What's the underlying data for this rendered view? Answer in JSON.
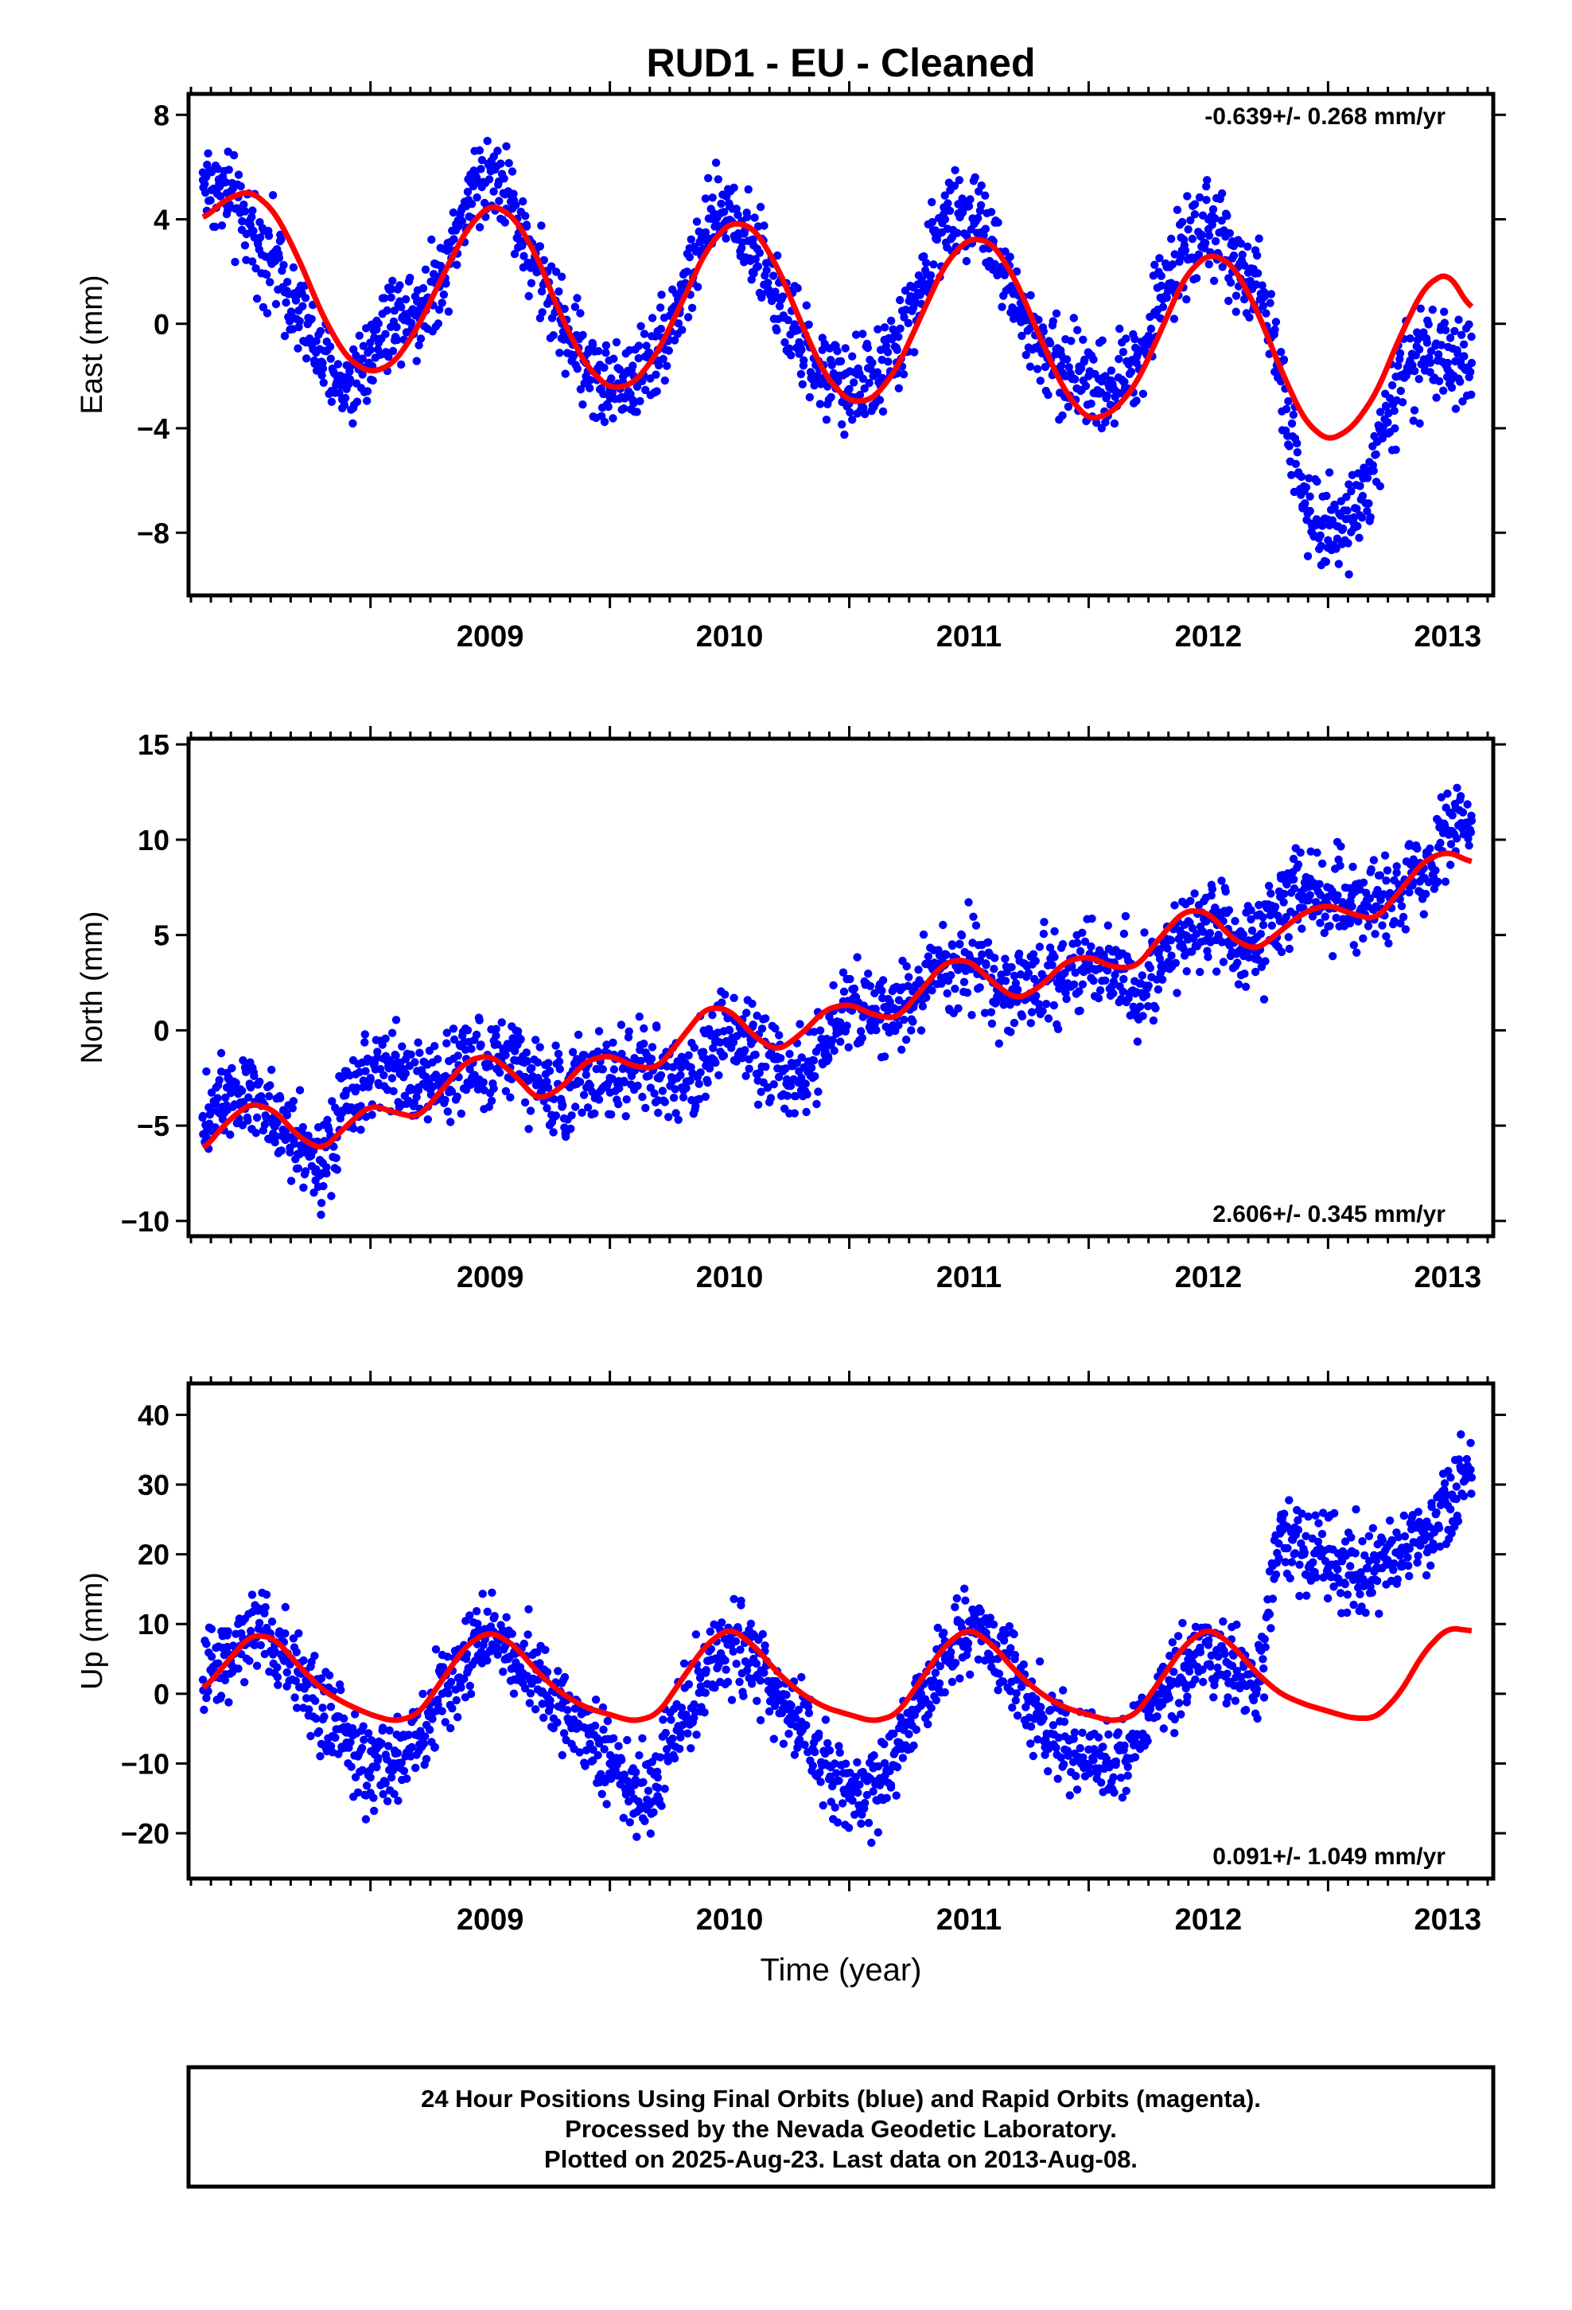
{
  "title": "RUD1  - EU - Cleaned",
  "xlabel": "Time (year)",
  "footer": [
    "24 Hour Positions Using Final Orbits (blue) and Rapid Orbits (magenta).",
    "Processed by the Nevada Geodetic Laboratory.",
    "Plotted on 2025-Aug-23. Last data on 2013-Aug-08."
  ],
  "colors": {
    "data": "#0000ff",
    "model": "#ff0000",
    "frame": "#000000"
  },
  "chart_data": [
    {
      "type": "scatter",
      "ylabel": "East (mm)",
      "rate": "-0.639+/- 0.268 mm/yr",
      "rate_position": "top-right",
      "xlim": [
        2008.24,
        2013.69
      ],
      "ylim": [
        -10.4,
        8.8
      ],
      "x_ticks": [
        2009,
        2010,
        2011,
        2012,
        2013
      ],
      "x_tick_labels": [
        "2009",
        "2010",
        "2011",
        "2012",
        "2013"
      ],
      "y_ticks": [
        -8,
        -4,
        0,
        4,
        8
      ],
      "y_tick_labels": [
        "−8",
        "−4",
        "0",
        "4",
        "8"
      ],
      "grid": false,
      "series": [
        {
          "kind": "points",
          "x": [
            2008.3,
            2008.4,
            2008.5,
            2008.6,
            2008.7,
            2008.8,
            2008.9,
            2009.0,
            2009.1,
            2009.2,
            2009.3,
            2009.4,
            2009.5,
            2009.6,
            2009.7,
            2009.8,
            2009.9,
            2010.0,
            2010.1,
            2010.2,
            2010.3,
            2010.4,
            2010.5,
            2010.6,
            2010.7,
            2010.8,
            2010.9,
            2011.0,
            2011.1,
            2011.2,
            2011.3,
            2011.4,
            2011.5,
            2011.6,
            2011.7,
            2011.8,
            2011.9,
            2012.0,
            2012.1,
            2012.2,
            2012.3,
            2012.4,
            2012.5,
            2012.6,
            2012.7,
            2012.8,
            2012.9,
            2013.0,
            2013.1,
            2013.2,
            2013.3,
            2013.4,
            2013.5,
            2013.6
          ],
          "y": [
            5.5,
            5.0,
            3.5,
            2.5,
            0.5,
            -1.5,
            -2.5,
            -1.0,
            0.5,
            0.5,
            2.0,
            4.5,
            6.0,
            4.5,
            2.0,
            0.0,
            -1.5,
            -2.5,
            -2.0,
            -1.0,
            1.0,
            3.5,
            4.5,
            3.0,
            1.0,
            -1.0,
            -2.0,
            -2.5,
            -2.0,
            -1.0,
            1.5,
            4.0,
            4.5,
            3.0,
            0.5,
            -1.0,
            -2.0,
            -2.0,
            -2.5,
            -1.5,
            1.0,
            3.0,
            4.0,
            2.5,
            1.5,
            -1.5,
            -7.0,
            -7.5,
            -7.5,
            -5.0,
            -2.0,
            -1.5,
            -1.5,
            -1.5
          ]
        },
        {
          "kind": "line",
          "x": [
            2008.3,
            2008.4,
            2008.5,
            2008.6,
            2008.7,
            2008.8,
            2008.9,
            2009.0,
            2009.1,
            2009.2,
            2009.3,
            2009.4,
            2009.5,
            2009.6,
            2009.7,
            2009.8,
            2009.9,
            2010.0,
            2010.1,
            2010.2,
            2010.3,
            2010.4,
            2010.5,
            2010.6,
            2010.7,
            2010.8,
            2010.9,
            2011.0,
            2011.1,
            2011.2,
            2011.3,
            2011.4,
            2011.5,
            2011.6,
            2011.7,
            2011.8,
            2011.9,
            2012.0,
            2012.1,
            2012.2,
            2012.3,
            2012.4,
            2012.5,
            2012.6,
            2012.7,
            2012.8,
            2012.9,
            2013.0,
            2013.1,
            2013.2,
            2013.3,
            2013.4,
            2013.5,
            2013.6
          ],
          "y": [
            4.0,
            4.8,
            5.1,
            4.3,
            2.5,
            0.3,
            -1.3,
            -1.9,
            -1.5,
            -0.1,
            1.8,
            3.6,
            4.6,
            4.1,
            2.5,
            0.2,
            -1.6,
            -2.5,
            -2.3,
            -1.1,
            0.8,
            2.8,
            3.9,
            3.7,
            2.2,
            0.0,
            -2.0,
            -3.0,
            -2.9,
            -1.7,
            0.3,
            2.3,
            3.3,
            3.1,
            1.6,
            -0.6,
            -2.6,
            -3.7,
            -3.4,
            -2.3,
            -0.3,
            1.8,
            2.7,
            2.3,
            0.6,
            -1.7,
            -3.7,
            -4.5,
            -4.0,
            -2.7,
            -0.5,
            1.4,
            2.0,
            0.5
          ]
        }
      ]
    },
    {
      "type": "scatter",
      "ylabel": "North (mm)",
      "rate": "2.606+/- 0.345 mm/yr",
      "rate_position": "bottom-right",
      "xlim": [
        2008.24,
        2013.69
      ],
      "ylim": [
        -10.8,
        15.3
      ],
      "x_ticks": [
        2009,
        2010,
        2011,
        2012,
        2013
      ],
      "x_tick_labels": [
        "2009",
        "2010",
        "2011",
        "2012",
        "2013"
      ],
      "y_ticks": [
        -10,
        -5,
        0,
        5,
        10,
        15
      ],
      "y_tick_labels": [
        "−10",
        "−5",
        "0",
        "5",
        "10",
        "15"
      ],
      "grid": false,
      "series": [
        {
          "kind": "points",
          "x": [
            2008.3,
            2008.4,
            2008.5,
            2008.6,
            2008.7,
            2008.8,
            2008.9,
            2009.0,
            2009.1,
            2009.2,
            2009.3,
            2009.4,
            2009.5,
            2009.6,
            2009.7,
            2009.8,
            2009.9,
            2010.0,
            2010.1,
            2010.2,
            2010.3,
            2010.4,
            2010.5,
            2010.6,
            2010.7,
            2010.8,
            2010.9,
            2011.0,
            2011.1,
            2011.2,
            2011.3,
            2011.4,
            2011.5,
            2011.6,
            2011.7,
            2011.8,
            2011.9,
            2012.0,
            2012.1,
            2012.2,
            2012.3,
            2012.4,
            2012.5,
            2012.6,
            2012.7,
            2012.8,
            2012.9,
            2013.0,
            2013.1,
            2013.2,
            2013.3,
            2013.4,
            2013.5,
            2013.6
          ],
          "y": [
            -4.5,
            -3.0,
            -3.0,
            -4.5,
            -5.5,
            -7.5,
            -4.0,
            -2.5,
            -2.0,
            -3.0,
            -2.5,
            -1.5,
            -1.5,
            -1.0,
            -2.5,
            -4.0,
            -2.0,
            -2.5,
            -2.0,
            -2.5,
            -3.0,
            -1.5,
            0.0,
            -0.5,
            -2.0,
            -2.5,
            -1.0,
            1.5,
            1.0,
            1.0,
            2.0,
            3.5,
            3.5,
            2.5,
            2.0,
            2.5,
            3.0,
            3.5,
            3.5,
            2.0,
            3.0,
            5.0,
            6.0,
            5.0,
            4.0,
            7.0,
            7.0,
            7.0,
            6.5,
            6.5,
            7.5,
            8.5,
            10.5,
            11.0
          ]
        },
        {
          "kind": "line",
          "x": [
            2008.3,
            2008.4,
            2008.5,
            2008.6,
            2008.7,
            2008.8,
            2008.9,
            2009.0,
            2009.1,
            2009.2,
            2009.3,
            2009.4,
            2009.5,
            2009.6,
            2009.7,
            2009.8,
            2009.9,
            2010.0,
            2010.1,
            2010.2,
            2010.3,
            2010.4,
            2010.5,
            2010.6,
            2010.7,
            2010.8,
            2010.9,
            2011.0,
            2011.1,
            2011.2,
            2011.3,
            2011.4,
            2011.5,
            2011.6,
            2011.7,
            2011.8,
            2011.9,
            2012.0,
            2012.1,
            2012.2,
            2012.3,
            2012.4,
            2012.5,
            2012.6,
            2012.7,
            2012.8,
            2012.9,
            2013.0,
            2013.1,
            2013.2,
            2013.3,
            2013.4,
            2013.5,
            2013.6
          ],
          "y": [
            -6.3,
            -4.8,
            -3.8,
            -4.2,
            -5.6,
            -6.3,
            -5.0,
            -3.9,
            -4.3,
            -4.6,
            -3.1,
            -1.6,
            -1.3,
            -2.3,
            -3.7,
            -3.0,
            -1.6,
            -1.3,
            -1.9,
            -2.0,
            -0.4,
            1.2,
            1.1,
            -0.3,
            -1.1,
            -0.2,
            1.1,
            1.4,
            0.8,
            0.6,
            2.1,
            3.6,
            3.7,
            2.5,
            1.6,
            2.3,
            3.6,
            3.9,
            3.3,
            3.3,
            4.9,
            6.3,
            6.2,
            4.8,
            4.2,
            5.2,
            6.2,
            6.6,
            6.1,
            5.8,
            7.3,
            8.9,
            9.4,
            8.8
          ]
        }
      ]
    },
    {
      "type": "scatter",
      "ylabel": "Up (mm)",
      "rate": "0.091+/- 1.049 mm/yr",
      "rate_position": "bottom-right",
      "xlim": [
        2008.24,
        2013.69
      ],
      "ylim": [
        -26.5,
        44.5
      ],
      "x_ticks": [
        2009,
        2010,
        2011,
        2012,
        2013
      ],
      "x_tick_labels": [
        "2009",
        "2010",
        "2011",
        "2012",
        "2013"
      ],
      "y_ticks": [
        -20,
        -10,
        0,
        10,
        20,
        30,
        40
      ],
      "y_tick_labels": [
        "−20",
        "−10",
        "0",
        "10",
        "20",
        "30",
        "40"
      ],
      "grid": false,
      "series": [
        {
          "kind": "points",
          "x": [
            2008.3,
            2008.4,
            2008.5,
            2008.6,
            2008.7,
            2008.8,
            2008.9,
            2009.0,
            2009.1,
            2009.2,
            2009.3,
            2009.4,
            2009.5,
            2009.6,
            2009.7,
            2009.8,
            2009.9,
            2010.0,
            2010.1,
            2010.2,
            2010.3,
            2010.4,
            2010.5,
            2010.6,
            2010.7,
            2010.8,
            2010.9,
            2011.0,
            2011.1,
            2011.2,
            2011.3,
            2011.4,
            2011.5,
            2011.6,
            2011.7,
            2011.8,
            2011.9,
            2012.0,
            2012.1,
            2012.2,
            2012.3,
            2012.4,
            2012.5,
            2012.6,
            2012.7,
            2012.8,
            2012.9,
            2013.0,
            2013.1,
            2013.2,
            2013.3,
            2013.4,
            2013.5,
            2013.6
          ],
          "y": [
            2.0,
            6.0,
            9.0,
            7.0,
            3.0,
            -2.0,
            -7.0,
            -12.0,
            -10.0,
            -6.0,
            0.0,
            5.0,
            9.0,
            6.0,
            2.0,
            -2.0,
            -5.0,
            -10.0,
            -15.0,
            -12.0,
            -3.0,
            3.0,
            8.0,
            5.0,
            0.0,
            -4.0,
            -10.0,
            -15.0,
            -14.0,
            -8.0,
            0.0,
            5.0,
            9.0,
            7.0,
            2.0,
            -4.0,
            -8.0,
            -8.0,
            -10.0,
            -6.0,
            0.0,
            4.0,
            7.0,
            4.0,
            0.0,
            23.0,
            20.0,
            18.0,
            17.0,
            18.0,
            20.0,
            24.0,
            27.0,
            31.0
          ]
        },
        {
          "kind": "line",
          "x": [
            2008.3,
            2008.4,
            2008.5,
            2008.6,
            2008.7,
            2008.8,
            2008.9,
            2009.0,
            2009.1,
            2009.2,
            2009.3,
            2009.4,
            2009.5,
            2009.6,
            2009.7,
            2009.8,
            2009.9,
            2010.0,
            2010.1,
            2010.2,
            2010.3,
            2010.4,
            2010.5,
            2010.6,
            2010.7,
            2010.8,
            2010.9,
            2011.0,
            2011.1,
            2011.2,
            2011.3,
            2011.4,
            2011.5,
            2011.6,
            2011.7,
            2011.8,
            2011.9,
            2012.0,
            2012.1,
            2012.2,
            2012.3,
            2012.4,
            2012.5,
            2012.6,
            2012.7,
            2012.8,
            2012.9,
            2013.0,
            2013.1,
            2013.2,
            2013.3,
            2013.4,
            2013.5,
            2013.6
          ],
          "y": [
            0.5,
            4.5,
            8.5,
            8.0,
            4.0,
            0.5,
            -1.5,
            -3.0,
            -4.0,
            -3.0,
            2.0,
            7.0,
            9.0,
            7.0,
            3.0,
            0.0,
            -2.0,
            -3.0,
            -4.0,
            -3.0,
            2.0,
            7.0,
            9.5,
            7.0,
            3.0,
            0.0,
            -2.0,
            -3.0,
            -4.0,
            -3.0,
            2.0,
            7.0,
            9.5,
            7.0,
            3.0,
            0.0,
            -2.0,
            -3.0,
            -4.0,
            -3.0,
            2.0,
            7.0,
            9.5,
            7.0,
            3.0,
            0.0,
            -1.5,
            -2.5,
            -3.5,
            -3.5,
            0.0,
            6.0,
            9.5,
            9.0
          ]
        }
      ]
    }
  ]
}
